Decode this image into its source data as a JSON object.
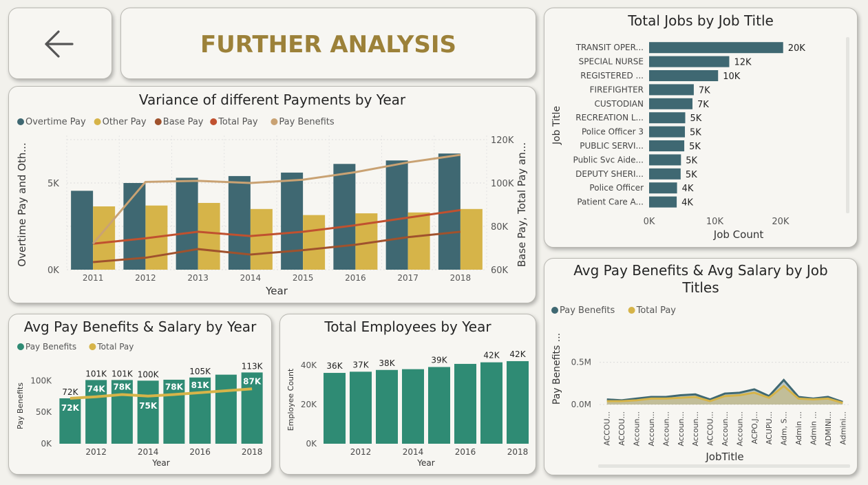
{
  "header": {
    "title": "FURTHER ANALYSIS",
    "back_icon": "arrow-left-icon"
  },
  "colors": {
    "teal": "#3f6872",
    "gold": "#d6b449",
    "brown": "#a0522d",
    "red": "#c0512f",
    "tan": "#c9a273",
    "green": "#2f8b74",
    "accent": "#9c8139"
  },
  "chart_data": [
    {
      "id": "variance",
      "type": "bar",
      "title": "Variance of different Payments by Year",
      "xlabel": "Year",
      "ylabel": "Overtime Pay and Oth...",
      "y2label": "Base Pay, Total Pay an...",
      "categories": [
        "2011",
        "2012",
        "2013",
        "2014",
        "2015",
        "2016",
        "2017",
        "2018"
      ],
      "ylim": [
        0,
        7500
      ],
      "y_ticks": [
        {
          "v": 0,
          "label": "0K"
        },
        {
          "v": 5000,
          "label": "5K"
        }
      ],
      "y2lim": [
        60000,
        120000
      ],
      "y2_ticks": [
        {
          "v": 60000,
          "label": "60K"
        },
        {
          "v": 80000,
          "label": "80K"
        },
        {
          "v": 100000,
          "label": "100K"
        },
        {
          "v": 120000,
          "label": "120K"
        }
      ],
      "legend": "top-left",
      "series": [
        {
          "name": "Overtime Pay",
          "kind": "bar",
          "axis": "left",
          "color": "#3f6872",
          "values": [
            4550,
            5000,
            5300,
            5400,
            5600,
            6100,
            6300,
            6700
          ]
        },
        {
          "name": "Other Pay",
          "kind": "bar",
          "axis": "left",
          "color": "#d6b449",
          "values": [
            3650,
            3700,
            3850,
            3500,
            3150,
            3250,
            3300,
            3500
          ]
        },
        {
          "name": "Base Pay",
          "kind": "line",
          "axis": "right",
          "color": "#a0522d",
          "values": [
            63500,
            65500,
            69500,
            67000,
            69000,
            71500,
            75000,
            77500
          ]
        },
        {
          "name": "Total Pay",
          "kind": "line",
          "axis": "right",
          "color": "#c0512f",
          "values": [
            72000,
            74500,
            77500,
            75500,
            77500,
            80500,
            84000,
            87500
          ]
        },
        {
          "name": "Pay Benefits",
          "kind": "line",
          "axis": "right",
          "color": "#c9a273",
          "values": [
            72000,
            100500,
            101000,
            100000,
            101500,
            105000,
            109500,
            113000
          ]
        }
      ]
    },
    {
      "id": "jobs",
      "type": "bar",
      "orientation": "horizontal",
      "title": "Total Jobs by Job Title",
      "xlabel": "Job Count",
      "ylabel": "Job Title",
      "categories": [
        "TRANSIT OPER...",
        "SPECIAL NURSE",
        "REGISTERED ...",
        "FIREFIGHTER",
        "CUSTODIAN",
        "RECREATION L...",
        "Police Officer 3",
        "PUBLIC SERVI...",
        "Public Svc Aide...",
        "DEPUTY SHERI...",
        "Police Officer",
        "Patient Care A..."
      ],
      "values": [
        20400,
        12200,
        10500,
        6800,
        6600,
        5500,
        5450,
        5350,
        4850,
        4800,
        4250,
        4200
      ],
      "labels": [
        "20K",
        "12K",
        "10K",
        "7K",
        "7K",
        "5K",
        "5K",
        "5K",
        "5K",
        "5K",
        "4K",
        "4K"
      ],
      "xlim": [
        0,
        22000
      ],
      "x_ticks": [
        {
          "v": 0,
          "label": "0K"
        },
        {
          "v": 10000,
          "label": "10K"
        },
        {
          "v": 20000,
          "label": "20K"
        }
      ],
      "color": "#3f6872"
    },
    {
      "id": "avg_year",
      "type": "bar",
      "title": "Avg Pay Benefits & Salary by Year",
      "xlabel": "Year",
      "ylabel": "Pay Benefits",
      "categories": [
        "2011",
        "2012",
        "2013",
        "2014",
        "2015",
        "2016",
        "2017",
        "2018"
      ],
      "x_tick_labels": [
        "",
        "2012",
        "",
        "2014",
        "",
        "2016",
        "",
        "2018"
      ],
      "ylim": [
        0,
        120000
      ],
      "y_ticks": [
        {
          "v": 0,
          "label": "0K"
        },
        {
          "v": 50000,
          "label": "50K"
        },
        {
          "v": 100000,
          "label": "100K"
        }
      ],
      "legend": "top-left",
      "series": [
        {
          "name": "Pay Benefits",
          "kind": "bar",
          "color": "#2f8b74",
          "values": [
            72000,
            101000,
            101000,
            100000,
            101500,
            105000,
            109500,
            113000
          ],
          "labels": [
            "72K",
            "101K",
            "101K",
            "100K",
            "",
            "105K",
            "",
            "113K"
          ]
        },
        {
          "name": "Total Pay",
          "kind": "line",
          "color": "#d6b449",
          "values": [
            72000,
            74500,
            78000,
            75500,
            78000,
            81000,
            84000,
            87000
          ],
          "labels": [
            "72K",
            "74K",
            "78K",
            "75K",
            "78K",
            "81K",
            "",
            "87K"
          ]
        }
      ]
    },
    {
      "id": "employees",
      "type": "bar",
      "title": "Total Employees by Year",
      "xlabel": "Year",
      "ylabel": "Employee Count",
      "categories": [
        "2011",
        "2012",
        "2013",
        "2014",
        "2015",
        "2016",
        "2017",
        "2018"
      ],
      "x_tick_labels": [
        "",
        "2012",
        "",
        "2014",
        "",
        "2016",
        "",
        "2018"
      ],
      "values": [
        36200,
        36800,
        37700,
        38100,
        39200,
        40800,
        41600,
        42200
      ],
      "labels": [
        "36K",
        "37K",
        "38K",
        "",
        "39K",
        "",
        "42K",
        "42K"
      ],
      "ylim": [
        0,
        45000
      ],
      "y_ticks": [
        {
          "v": 0,
          "label": "0K"
        },
        {
          "v": 20000,
          "label": "20K"
        },
        {
          "v": 40000,
          "label": "40K"
        }
      ],
      "color": "#2f8b74"
    },
    {
      "id": "avg_job",
      "type": "area",
      "title": "Avg Pay Benefits & Avg Salary by Job Titles",
      "xlabel": "JobTitle",
      "ylabel": "Pay Benefits ...",
      "categories": [
        "ACCOU...",
        "ACCOU...",
        "Accoun...",
        "Accoun...",
        "Accoun...",
        "Accoun...",
        "Accoun...",
        "ACCOU...",
        "Accoun...",
        "Accoun...",
        "ACPO,J...",
        "ACUPU...",
        "Adm, S...",
        "Admin ...",
        "Admin ...",
        "ADMINI...",
        "Admini..."
      ],
      "ylim": [
        0,
        0.75
      ],
      "y_ticks": [
        {
          "v": 0,
          "label": "0.0M"
        },
        {
          "v": 0.5,
          "label": "0.5M"
        }
      ],
      "legend": "top-left",
      "series": [
        {
          "name": "Pay Benefits",
          "color": "#3f6872",
          "values": [
            0.06,
            0.05,
            0.07,
            0.09,
            0.09,
            0.11,
            0.12,
            0.06,
            0.13,
            0.14,
            0.18,
            0.1,
            0.29,
            0.09,
            0.07,
            0.09,
            0.03
          ]
        },
        {
          "name": "Total Pay",
          "color": "#d6b449",
          "values": [
            0.04,
            0.04,
            0.05,
            0.07,
            0.07,
            0.08,
            0.09,
            0.04,
            0.1,
            0.11,
            0.14,
            0.08,
            0.22,
            0.07,
            0.06,
            0.07,
            0.02
          ]
        }
      ]
    }
  ]
}
